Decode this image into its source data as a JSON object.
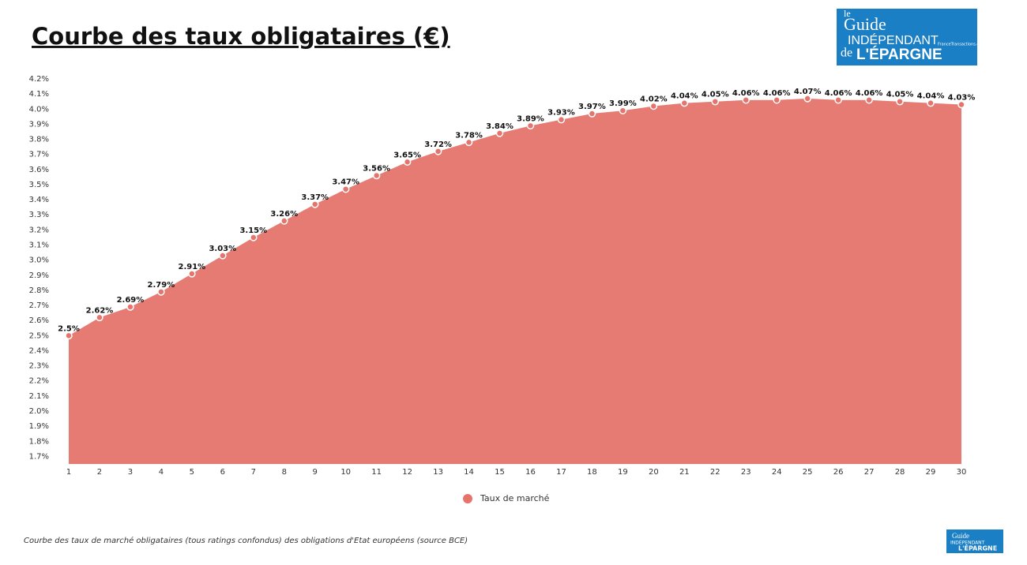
{
  "chart_data": {
    "type": "area",
    "title": "Courbe des taux obligataires (€)",
    "caption": "Courbe des taux de marché obligataires (tous ratings confondus) des obligations d'Etat européens (source BCE)",
    "logo": {
      "line1": "le",
      "line2": "Guide",
      "line3": "INDÉPENDANT",
      "line4": "de",
      "line5": "L'ÉPARGNE",
      "site": "FranceTransactions.com"
    },
    "x": [
      1,
      2,
      3,
      4,
      5,
      6,
      7,
      8,
      9,
      10,
      11,
      12,
      13,
      14,
      15,
      16,
      17,
      18,
      19,
      20,
      21,
      22,
      23,
      24,
      25,
      26,
      27,
      28,
      29,
      30
    ],
    "xlim": [
      1,
      30
    ],
    "xticks": [
      1,
      2,
      3,
      4,
      5,
      6,
      7,
      8,
      9,
      10,
      11,
      12,
      13,
      14,
      15,
      16,
      17,
      18,
      19,
      20,
      21,
      22,
      23,
      24,
      25,
      26,
      27,
      28,
      29,
      30
    ],
    "ylim": [
      1.65,
      4.2
    ],
    "yticks": [
      {
        "value": 1.7,
        "label": "1.7%"
      },
      {
        "value": 1.8,
        "label": "1.8%"
      },
      {
        "value": 1.9,
        "label": "1.9%"
      },
      {
        "value": 2.0,
        "label": "2.0%"
      },
      {
        "value": 2.1,
        "label": "2.1%"
      },
      {
        "value": 2.2,
        "label": "2.2%"
      },
      {
        "value": 2.3,
        "label": "2.3%"
      },
      {
        "value": 2.4,
        "label": "2.4%"
      },
      {
        "value": 2.5,
        "label": "2.5%"
      },
      {
        "value": 2.6,
        "label": "2.6%"
      },
      {
        "value": 2.7,
        "label": "2.7%"
      },
      {
        "value": 2.8,
        "label": "2.8%"
      },
      {
        "value": 2.9,
        "label": "2.9%"
      },
      {
        "value": 3.0,
        "label": "3.0%"
      },
      {
        "value": 3.1,
        "label": "3.1%"
      },
      {
        "value": 3.2,
        "label": "3.2%"
      },
      {
        "value": 3.3,
        "label": "3.3%"
      },
      {
        "value": 3.4,
        "label": "3.4%"
      },
      {
        "value": 3.5,
        "label": "3.5%"
      },
      {
        "value": 3.6,
        "label": "3.6%"
      },
      {
        "value": 3.7,
        "label": "3.7%"
      },
      {
        "value": 3.8,
        "label": "3.8%"
      },
      {
        "value": 3.9,
        "label": "3.9%"
      },
      {
        "value": 4.0,
        "label": "4.0%"
      },
      {
        "value": 4.1,
        "label": "4.1%"
      },
      {
        "value": 4.2,
        "label": "4.2%"
      }
    ],
    "series": [
      {
        "name": "Taux de marché",
        "color": "#e5746c",
        "values": [
          2.5,
          2.62,
          2.69,
          2.79,
          2.91,
          3.03,
          3.15,
          3.26,
          3.37,
          3.47,
          3.56,
          3.65,
          3.72,
          3.78,
          3.84,
          3.89,
          3.93,
          3.97,
          3.99,
          4.02,
          4.04,
          4.05,
          4.06,
          4.06,
          4.07,
          4.06,
          4.06,
          4.05,
          4.04,
          4.03
        ],
        "value_labels": [
          "2.5%",
          "2.62%",
          "2.69%",
          "2.79%",
          "2.91%",
          "3.03%",
          "3.15%",
          "3.26%",
          "3.37%",
          "3.47%",
          "3.56%",
          "3.65%",
          "3.72%",
          "3.78%",
          "3.84%",
          "3.89%",
          "3.93%",
          "3.97%",
          "3.99%",
          "4.02%",
          "4.04%",
          "4.05%",
          "4.06%",
          "4.06%",
          "4.07%",
          "4.06%",
          "4.06%",
          "4.05%",
          "4.04%",
          "4.03%"
        ]
      }
    ]
  }
}
